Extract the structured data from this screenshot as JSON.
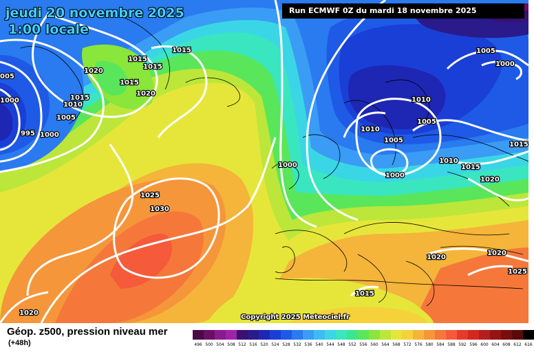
{
  "header": {
    "date": "jeudi 20 novembre 2025",
    "time": "1:00 locale",
    "run": "Run ECMWF 0Z du mardi 18 novembre 2025"
  },
  "footer": {
    "param": "Géop. z500, pression niveau mer",
    "lead": "(+48h)",
    "copyright": "Copyright 2025 Meteociel.fr"
  },
  "isobar_labels": [
    "1015",
    "1015",
    "1015",
    "1020",
    "1015",
    "1015",
    "1020",
    "1010",
    "1005",
    "1000",
    "995",
    "1000",
    "005",
    "1000",
    "1025",
    "1030",
    "1020",
    "1020",
    "1010",
    "1005",
    "1010",
    "1005",
    "1000",
    "1010",
    "1015",
    "1015",
    "1020",
    "1020",
    "1025",
    "1015",
    "1005",
    "1000"
  ],
  "scale": {
    "labels": [
      "496",
      "500",
      "504",
      "508",
      "512",
      "516",
      "520",
      "524",
      "528",
      "532",
      "536",
      "540",
      "544",
      "548",
      "552",
      "556",
      "560",
      "564",
      "568",
      "572",
      "576",
      "580",
      "584",
      "588",
      "592",
      "596",
      "600",
      "604",
      "608",
      "612",
      "616"
    ],
    "colors": [
      "#4b0a45",
      "#6b0f66",
      "#8a1a8f",
      "#a022a8",
      "#3a1070",
      "#2a1a8c",
      "#1e26b4",
      "#1a3fd6",
      "#1e5ae6",
      "#2a7af0",
      "#3a9cf5",
      "#3cbcf5",
      "#3ad6e6",
      "#3ae6c0",
      "#3ae68c",
      "#5ae65a",
      "#8ae63a",
      "#bce63a",
      "#e6e63a",
      "#f5d23a",
      "#f5b43a",
      "#f5963a",
      "#f5783a",
      "#f55a3a",
      "#e63a2a",
      "#d2281e",
      "#b41e1e",
      "#961414",
      "#780f0f",
      "#5a0a0a",
      "#000000"
    ]
  }
}
